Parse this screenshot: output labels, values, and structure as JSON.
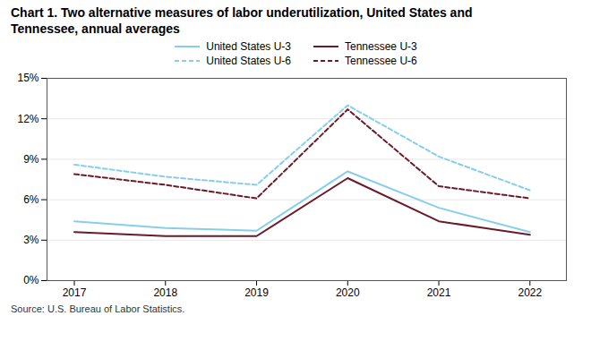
{
  "chart_data": {
    "type": "line",
    "title": "Chart 1.  Two alternative measures of labor underutilization, United States and\nTennessee, annual averages",
    "caption": "Source: U.S. Bureau of Labor Statistics.",
    "x": [
      2017,
      2018,
      2019,
      2020,
      2021,
      2022
    ],
    "xlim": [
      2016.7,
      2022.4
    ],
    "xticks": [
      2017,
      2018,
      2019,
      2020,
      2021,
      2022
    ],
    "ylim": [
      0,
      15
    ],
    "yticks": [
      {
        "value": 0,
        "label": "0%"
      },
      {
        "value": 3,
        "label": "3%"
      },
      {
        "value": 6,
        "label": "6%"
      },
      {
        "value": 9,
        "label": "9%"
      },
      {
        "value": 12,
        "label": "12%"
      },
      {
        "value": 15,
        "label": "15%"
      }
    ],
    "grid": "y",
    "legend": "top",
    "series": [
      {
        "name": "United States U-3",
        "color": "#87CEEB",
        "line_style": "solid",
        "values": [
          4.4,
          3.9,
          3.7,
          8.1,
          5.4,
          3.6
        ]
      },
      {
        "name": "United States U-6",
        "color": "#87CEEB",
        "line_style": "dashed",
        "values": [
          8.6,
          7.7,
          7.1,
          13.0,
          9.2,
          6.7
        ]
      },
      {
        "name": "Tennessee U-3",
        "color": "#6B1A2A",
        "line_style": "solid",
        "values": [
          3.6,
          3.3,
          3.3,
          7.6,
          4.4,
          3.4
        ]
      },
      {
        "name": "Tennessee U-6",
        "color": "#6B1A2A",
        "line_style": "dashed",
        "values": [
          7.9,
          7.1,
          6.1,
          12.7,
          7.0,
          6.1
        ]
      }
    ]
  }
}
